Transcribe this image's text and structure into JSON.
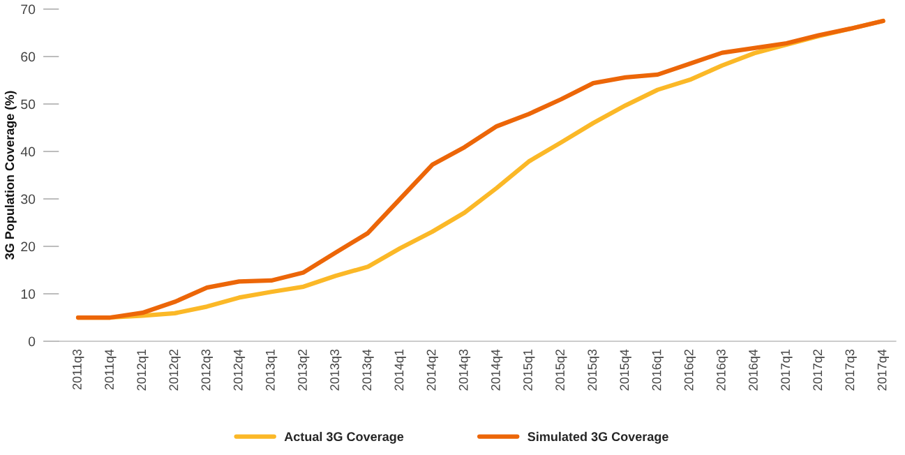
{
  "chart_data": {
    "type": "line",
    "ylabel": "3G Population Coverage (%)",
    "categories": [
      "2011q3",
      "2011q4",
      "2012q1",
      "2012q2",
      "2012q3",
      "2012q4",
      "2013q1",
      "2013q2",
      "2013q3",
      "2013q4",
      "2014q1",
      "2014q2",
      "2014q3",
      "2014q4",
      "2015q1",
      "2015q2",
      "2015q3",
      "2015q4",
      "2016q1",
      "2016q2",
      "2016q3",
      "2016q4",
      "2017q1",
      "2017q2",
      "2017q3",
      "2017q4"
    ],
    "series": [
      {
        "name": "Actual 3G Coverage",
        "color": "#fbb827",
        "values": [
          5.0,
          5.0,
          5.4,
          5.9,
          7.3,
          9.2,
          10.4,
          11.5,
          13.8,
          15.7,
          19.6,
          23.1,
          27.1,
          32.3,
          37.9,
          41.9,
          46.0,
          49.7,
          53.0,
          55.1,
          58.1,
          60.7,
          62.5,
          64.3,
          65.9,
          67.5
        ]
      },
      {
        "name": "Simulated 3G Coverage",
        "color": "#ec6608",
        "values": [
          5.0,
          5.0,
          6.0,
          8.3,
          11.3,
          12.6,
          12.8,
          14.5,
          18.7,
          22.8,
          30.0,
          37.2,
          40.9,
          45.3,
          47.9,
          51.0,
          54.4,
          55.6,
          56.2,
          58.5,
          60.8,
          61.8,
          62.8,
          64.5,
          65.9,
          67.5
        ]
      }
    ],
    "ylim": [
      0,
      70
    ],
    "yticks": [
      0,
      10,
      20,
      30,
      40,
      50,
      60,
      70
    ],
    "grid": false,
    "legend": "bottom",
    "marker": "none",
    "line_style": "solid"
  }
}
